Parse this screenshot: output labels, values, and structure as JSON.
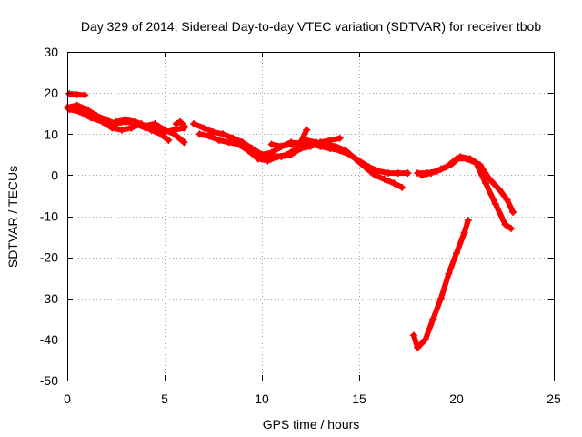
{
  "chart_data": {
    "type": "scatter",
    "title": "Day 329 of 2014, Sidereal Day-to-day VTEC variation (SDTVAR) for receiver tbob",
    "xlabel": "GPS time / hours",
    "ylabel": "SDTVAR / TECUs",
    "xlim": [
      0,
      25
    ],
    "ylim": [
      -50,
      30
    ],
    "xticks": [
      0,
      5,
      10,
      15,
      20,
      25
    ],
    "yticks": [
      30,
      20,
      10,
      0,
      -10,
      -20,
      -30,
      -40,
      -50
    ],
    "grid": true,
    "marker": "+",
    "color": "#ff0000",
    "series": [
      {
        "name": "s1",
        "x": [
          0.1,
          0.5,
          0.9
        ],
        "y": [
          19.8,
          19.6,
          19.5
        ]
      },
      {
        "name": "s2",
        "x": [
          0.0,
          0.5,
          1.0,
          1.5,
          2.0,
          2.5,
          3.0,
          3.5,
          4.0,
          4.5,
          5.0,
          5.5,
          6.0
        ],
        "y": [
          16.5,
          17.0,
          16.0,
          14.5,
          13.5,
          12.5,
          13.0,
          12.5,
          11.5,
          11.0,
          10.5,
          11.0,
          11.5
        ]
      },
      {
        "name": "s3",
        "x": [
          0.1,
          0.6,
          1.2,
          1.8,
          2.3,
          2.8,
          3.3,
          3.8,
          4.3,
          4.8,
          5.2
        ],
        "y": [
          16.0,
          15.5,
          14.0,
          13.0,
          11.5,
          11.0,
          11.5,
          12.5,
          11.0,
          10.0,
          8.5
        ]
      },
      {
        "name": "s4",
        "x": [
          2.5,
          3.0,
          3.5,
          4.0,
          4.5,
          5.0,
          5.5,
          6.0
        ],
        "y": [
          13.0,
          13.5,
          13.0,
          12.0,
          12.5,
          11.0,
          10.0,
          8.0
        ]
      },
      {
        "name": "s5",
        "x": [
          5.6,
          5.8,
          6.0
        ],
        "y": [
          12.5,
          13.0,
          12.0
        ]
      },
      {
        "name": "s6",
        "x": [
          6.5,
          7.0,
          7.5,
          8.0,
          8.5,
          9.0,
          9.5,
          10.0,
          10.5,
          11.0,
          11.5,
          12.0,
          12.5,
          13.0,
          13.5,
          14.0,
          14.5,
          15.0,
          15.5,
          16.0,
          16.5,
          17.0,
          17.5
        ],
        "y": [
          12.5,
          11.5,
          10.5,
          10.0,
          9.0,
          8.0,
          6.5,
          5.0,
          5.5,
          7.0,
          8.0,
          7.5,
          7.5,
          7.0,
          6.5,
          6.0,
          5.0,
          3.5,
          2.0,
          1.0,
          0.5,
          0.5,
          0.5
        ]
      },
      {
        "name": "s7",
        "x": [
          6.8,
          7.3,
          7.8,
          8.3,
          8.8,
          9.3,
          9.8,
          10.3,
          10.8,
          11.3,
          11.8,
          12.3,
          12.8,
          13.3,
          13.8,
          14.3,
          14.8,
          15.3,
          15.8,
          16.3,
          16.8,
          17.2
        ],
        "y": [
          10.0,
          9.5,
          8.5,
          8.0,
          7.5,
          6.0,
          4.0,
          3.5,
          4.5,
          5.0,
          6.5,
          8.5,
          8.0,
          7.5,
          7.0,
          6.0,
          4.0,
          2.0,
          0.0,
          -1.0,
          -2.0,
          -3.0
        ]
      },
      {
        "name": "s8",
        "x": [
          8.5,
          9.0,
          9.5,
          10.0,
          10.5,
          11.0,
          11.5,
          12.0,
          12.5,
          13.0,
          13.5,
          14.0
        ],
        "y": [
          9.0,
          8.0,
          5.5,
          4.0,
          4.5,
          4.5,
          5.0,
          6.5,
          7.0,
          8.0,
          8.5,
          9.0
        ]
      },
      {
        "name": "s9",
        "x": [
          10.5,
          11.0,
          11.5,
          12.0,
          12.3
        ],
        "y": [
          7.5,
          7.0,
          7.5,
          8.0,
          11.0
        ]
      },
      {
        "name": "s10",
        "x": [
          18.0,
          18.5,
          19.0,
          19.5,
          20.0,
          20.5,
          21.0,
          21.5,
          22.0,
          22.5,
          22.8
        ],
        "y": [
          0.5,
          0.5,
          1.0,
          2.0,
          4.0,
          4.0,
          3.0,
          -2.0,
          -7.0,
          -12.0,
          -13.0
        ]
      },
      {
        "name": "s11",
        "x": [
          18.2,
          18.7,
          19.2,
          19.7,
          20.2,
          20.7,
          21.2,
          21.7,
          22.2,
          22.6,
          22.9
        ],
        "y": [
          0.0,
          0.5,
          1.5,
          2.5,
          4.5,
          4.0,
          2.5,
          -1.0,
          -3.5,
          -6.0,
          -9.0
        ]
      },
      {
        "name": "s12",
        "x": [
          17.8,
          18.0,
          18.4,
          18.8,
          19.2,
          19.6,
          20.0,
          20.4,
          20.6
        ],
        "y": [
          -39.0,
          -42.0,
          -40.0,
          -35.0,
          -30.0,
          -24.0,
          -19.0,
          -14.0,
          -11.0
        ]
      }
    ]
  }
}
